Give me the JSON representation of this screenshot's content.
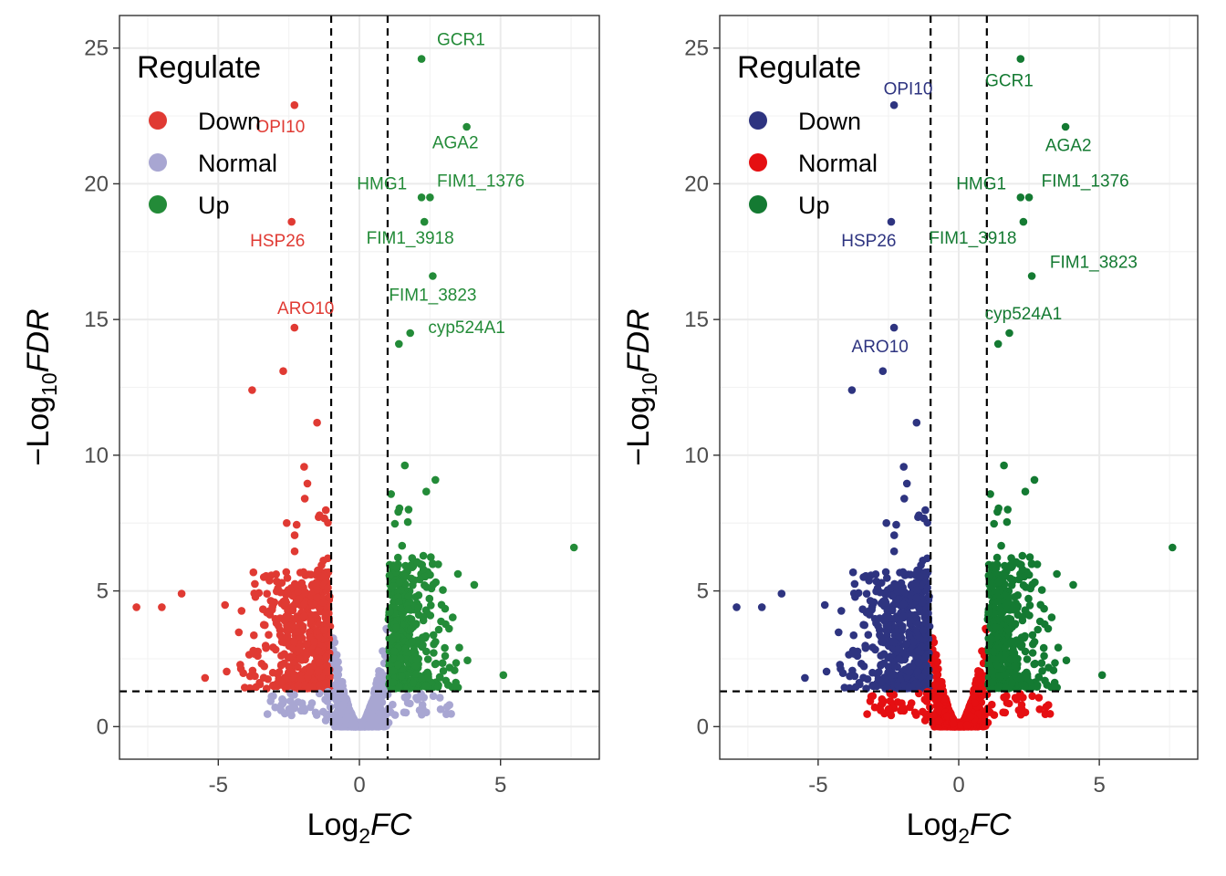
{
  "chart_data": [
    {
      "type": "scatter",
      "panel": "left",
      "xlabel": {
        "main": "Log",
        "sub": "2",
        "italic": "FC"
      },
      "ylabel": {
        "prefix": "−Log",
        "sub": "10",
        "italic": "FDR"
      },
      "xlim": [
        -8.5,
        8.5
      ],
      "ylim": [
        -1.2,
        26.2
      ],
      "xticks": [
        -5,
        0,
        5
      ],
      "xtick_labels": [
        "-5",
        "0",
        "5"
      ],
      "yticks": [
        0,
        5,
        10,
        15,
        20,
        25
      ],
      "ytick_labels": [
        "0",
        "5",
        "10",
        "15",
        "20",
        "25"
      ],
      "grid": true,
      "thresholds": {
        "x": [
          -1,
          1
        ],
        "y": 1.3
      },
      "legend": {
        "title": "Regulate",
        "position": "top-left",
        "entries": [
          {
            "name": "Down",
            "color": "#e03a33"
          },
          {
            "name": "Normal",
            "color": "#a8a6d2"
          },
          {
            "name": "Up",
            "color": "#238b38"
          }
        ]
      },
      "series": [
        {
          "name": "Down",
          "color": "#e03a33"
        },
        {
          "name": "Normal",
          "color": "#a8a6d2"
        },
        {
          "name": "Up",
          "color": "#238b38"
        }
      ],
      "highlighted": [
        {
          "x": -2.3,
          "y": 22.9,
          "group": "Down"
        },
        {
          "x": -2.4,
          "y": 18.6,
          "group": "Down"
        },
        {
          "x": -2.3,
          "y": 14.7,
          "group": "Down"
        },
        {
          "x": -2.7,
          "y": 13.1,
          "group": "Down"
        },
        {
          "x": -3.8,
          "y": 12.4,
          "group": "Down"
        },
        {
          "x": -1.5,
          "y": 11.2,
          "group": "Down"
        },
        {
          "x": 2.2,
          "y": 24.6,
          "group": "Up"
        },
        {
          "x": 3.8,
          "y": 22.1,
          "group": "Up"
        },
        {
          "x": 2.2,
          "y": 19.5,
          "group": "Up"
        },
        {
          "x": 2.5,
          "y": 19.5,
          "group": "Up"
        },
        {
          "x": 2.3,
          "y": 18.6,
          "group": "Up"
        },
        {
          "x": 2.6,
          "y": 16.6,
          "group": "Up"
        },
        {
          "x": 1.8,
          "y": 14.5,
          "group": "Up"
        },
        {
          "x": 1.4,
          "y": 14.1,
          "group": "Up"
        },
        {
          "x": 7.6,
          "y": 6.6,
          "group": "Up"
        },
        {
          "x": 5.1,
          "y": 1.9,
          "group": "Up"
        },
        {
          "x": -7.9,
          "y": 4.4,
          "group": "Down"
        },
        {
          "x": -7.0,
          "y": 4.4,
          "group": "Down"
        },
        {
          "x": -6.3,
          "y": 4.9,
          "group": "Down"
        }
      ],
      "annotations": [
        {
          "text": "GCR1",
          "x": 3.6,
          "y": 25.1,
          "color": "#238b38"
        },
        {
          "text": "AGA2",
          "x": 3.4,
          "y": 21.3,
          "color": "#238b38"
        },
        {
          "text": "HMG1",
          "x": 0.8,
          "y": 19.8,
          "color": "#238b38"
        },
        {
          "text": "FIM1_1376",
          "x": 4.3,
          "y": 19.9,
          "color": "#238b38"
        },
        {
          "text": "FIM1_3918",
          "x": 1.8,
          "y": 17.8,
          "color": "#238b38"
        },
        {
          "text": "FIM1_3823",
          "x": 2.6,
          "y": 15.7,
          "color": "#238b38"
        },
        {
          "text": "cyp524A1",
          "x": 3.8,
          "y": 14.5,
          "color": "#238b38"
        },
        {
          "text": "OPI10",
          "x": -2.8,
          "y": 21.9,
          "color": "#e03a33"
        },
        {
          "text": "HSP26",
          "x": -2.9,
          "y": 17.7,
          "color": "#e03a33"
        },
        {
          "text": "ARO10",
          "x": -1.9,
          "y": 15.2,
          "color": "#e03a33"
        }
      ]
    },
    {
      "type": "scatter",
      "panel": "right",
      "xlabel": {
        "main": "Log",
        "sub": "2",
        "italic": "FC"
      },
      "ylabel": {
        "prefix": "−Log",
        "sub": "10",
        "italic": "FDR"
      },
      "xlim": [
        -8.5,
        8.5
      ],
      "ylim": [
        -1.2,
        26.2
      ],
      "xticks": [
        -5,
        0,
        5
      ],
      "xtick_labels": [
        "-5",
        "0",
        "5"
      ],
      "yticks": [
        0,
        5,
        10,
        15,
        20,
        25
      ],
      "ytick_labels": [
        "0",
        "5",
        "10",
        "15",
        "20",
        "25"
      ],
      "grid": true,
      "thresholds": {
        "x": [
          -1,
          1
        ],
        "y": 1.3
      },
      "legend": {
        "title": "Regulate",
        "position": "top-left",
        "entries": [
          {
            "name": "Down",
            "color": "#2e3480"
          },
          {
            "name": "Normal",
            "color": "#e50f12"
          },
          {
            "name": "Up",
            "color": "#147a32"
          }
        ]
      },
      "series": [
        {
          "name": "Down",
          "color": "#2e3480"
        },
        {
          "name": "Normal",
          "color": "#e50f12"
        },
        {
          "name": "Up",
          "color": "#147a32"
        }
      ],
      "highlighted": [
        {
          "x": -2.3,
          "y": 22.9,
          "group": "Down"
        },
        {
          "x": -2.4,
          "y": 18.6,
          "group": "Down"
        },
        {
          "x": -2.3,
          "y": 14.7,
          "group": "Down"
        },
        {
          "x": -2.7,
          "y": 13.1,
          "group": "Down"
        },
        {
          "x": -3.8,
          "y": 12.4,
          "group": "Down"
        },
        {
          "x": -1.5,
          "y": 11.2,
          "group": "Down"
        },
        {
          "x": 2.2,
          "y": 24.6,
          "group": "Up"
        },
        {
          "x": 3.8,
          "y": 22.1,
          "group": "Up"
        },
        {
          "x": 2.2,
          "y": 19.5,
          "group": "Up"
        },
        {
          "x": 2.5,
          "y": 19.5,
          "group": "Up"
        },
        {
          "x": 2.3,
          "y": 18.6,
          "group": "Up"
        },
        {
          "x": 2.6,
          "y": 16.6,
          "group": "Up"
        },
        {
          "x": 1.8,
          "y": 14.5,
          "group": "Up"
        },
        {
          "x": 1.4,
          "y": 14.1,
          "group": "Up"
        },
        {
          "x": 7.6,
          "y": 6.6,
          "group": "Up"
        },
        {
          "x": 5.1,
          "y": 1.9,
          "group": "Up"
        },
        {
          "x": -7.9,
          "y": 4.4,
          "group": "Down"
        },
        {
          "x": -7.0,
          "y": 4.4,
          "group": "Down"
        },
        {
          "x": -6.3,
          "y": 4.9,
          "group": "Down"
        }
      ],
      "annotations": [
        {
          "text": "GCR1",
          "x": 1.8,
          "y": 23.6,
          "color": "#147a32"
        },
        {
          "text": "AGA2",
          "x": 3.9,
          "y": 21.2,
          "color": "#147a32"
        },
        {
          "text": "HMG1",
          "x": 0.8,
          "y": 19.8,
          "color": "#147a32"
        },
        {
          "text": "FIM1_1376",
          "x": 4.5,
          "y": 19.9,
          "color": "#147a32"
        },
        {
          "text": "FIM1_3918",
          "x": 0.5,
          "y": 17.8,
          "color": "#147a32"
        },
        {
          "text": "FIM1_3823",
          "x": 4.8,
          "y": 16.9,
          "color": "#147a32"
        },
        {
          "text": "cyp524A1",
          "x": 2.3,
          "y": 15.0,
          "color": "#147a32"
        },
        {
          "text": "OPI10",
          "x": -1.8,
          "y": 23.3,
          "color": "#2e3480"
        },
        {
          "text": "HSP26",
          "x": -3.2,
          "y": 17.7,
          "color": "#2e3480"
        },
        {
          "text": "ARO10",
          "x": -2.8,
          "y": 13.8,
          "color": "#2e3480"
        }
      ]
    }
  ]
}
